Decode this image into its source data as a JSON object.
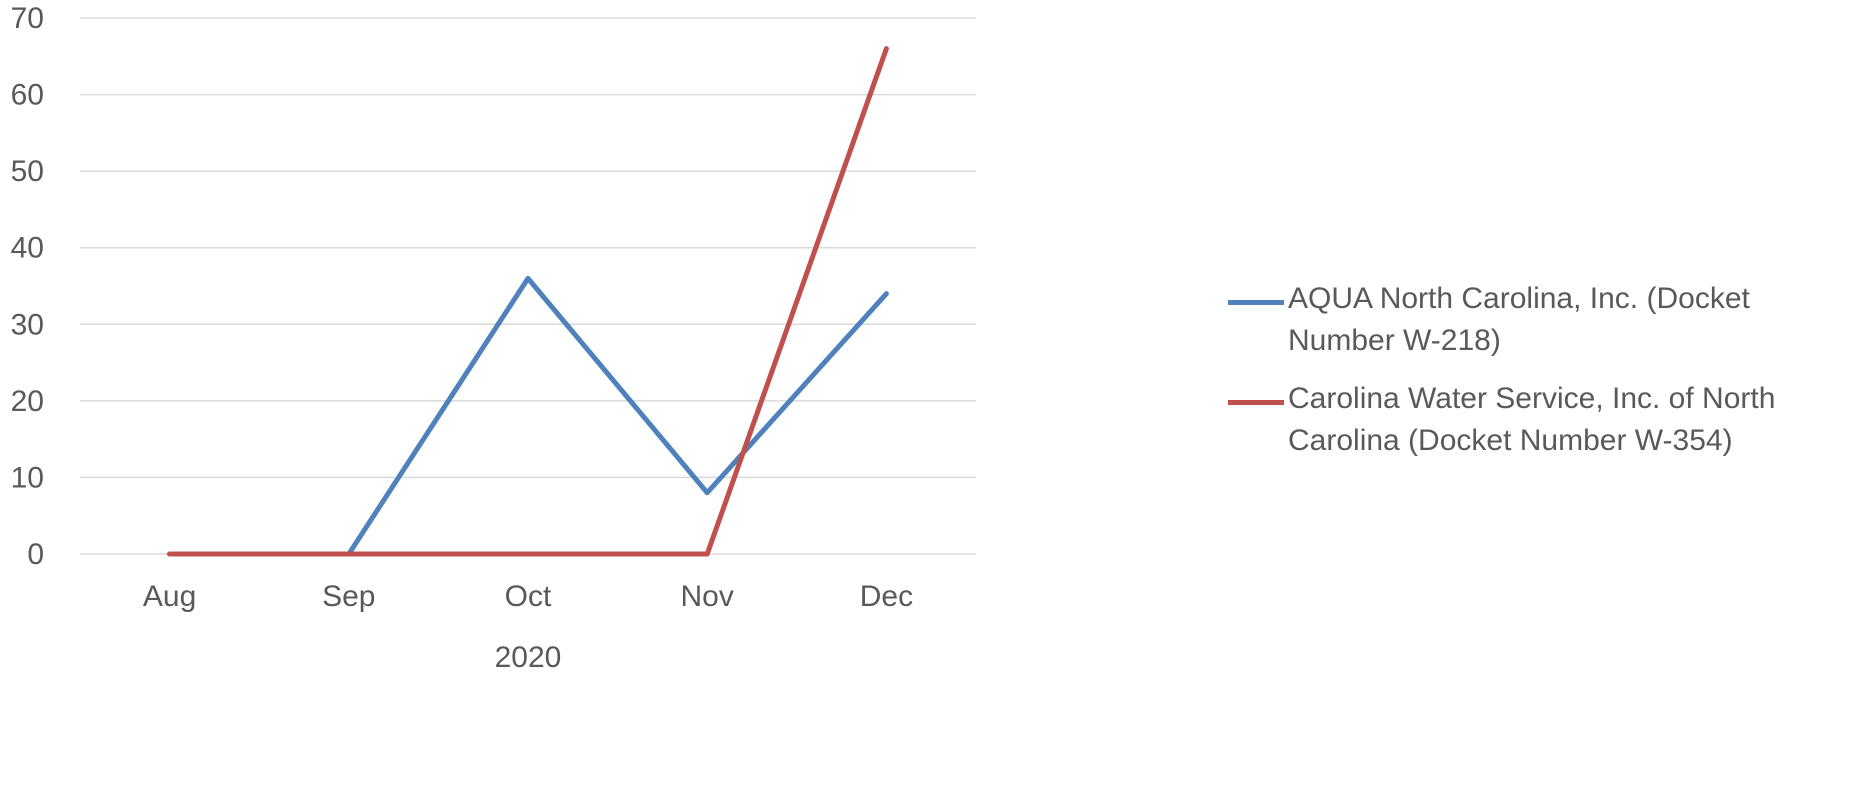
{
  "chart_data": {
    "type": "line",
    "categories": [
      "Aug",
      "Sep",
      "Oct",
      "Nov",
      "Dec"
    ],
    "category_group_label": "2020",
    "ylim": [
      0,
      70
    ],
    "yticks": [
      0,
      10,
      20,
      30,
      40,
      50,
      60,
      70
    ],
    "grid": true,
    "legend_position": "right",
    "series": [
      {
        "name": "AQUA North Carolina, Inc. (Docket Number W-218)",
        "values": [
          0,
          0,
          36,
          8,
          34
        ],
        "color": "#4f81bd"
      },
      {
        "name": "Carolina Water Service, Inc. of North Carolina (Docket Number W-354)",
        "values": [
          0,
          0,
          0,
          0,
          66
        ],
        "color": "#c0504d"
      }
    ]
  }
}
